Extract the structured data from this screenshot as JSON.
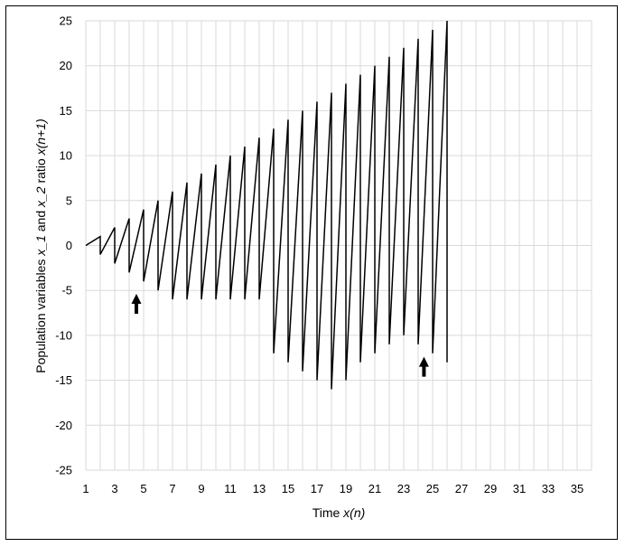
{
  "chart_data": {
    "type": "line",
    "xlabel_main": "Time ",
    "xlabel_var": "x(n)",
    "ylabel_main": "Population variables ",
    "ylabel_var1": "x_1",
    "ylabel_mid": " and ",
    "ylabel_var2": "x_2",
    "ylabel_end": " ratio ",
    "ylabel_var3": "x(n+1)",
    "xlim": [
      1,
      36
    ],
    "ylim": [
      -25,
      25
    ],
    "x_ticks": [
      "1",
      "3",
      "5",
      "7",
      "9",
      "11",
      "13",
      "15",
      "17",
      "19",
      "21",
      "23",
      "25",
      "27",
      "29",
      "31",
      "33",
      "35"
    ],
    "y_ticks": [
      "25",
      "20",
      "15",
      "10",
      "5",
      "0",
      "-5",
      "-10",
      "-15",
      "-20",
      "-25"
    ],
    "x_tick_values": [
      1,
      3,
      5,
      7,
      9,
      11,
      13,
      15,
      17,
      19,
      21,
      23,
      25,
      27,
      29,
      31,
      33,
      35
    ],
    "y_tick_values": [
      25,
      20,
      15,
      10,
      5,
      0,
      -5,
      -10,
      -15,
      -20,
      -25
    ],
    "grid": true,
    "line_color": "#000000",
    "grid_color": "#d9d9d9",
    "series": [
      {
        "points": [
          [
            1,
            0
          ],
          [
            2,
            1
          ],
          [
            2,
            -1
          ],
          [
            3,
            2
          ],
          [
            3,
            -2
          ],
          [
            4,
            3
          ],
          [
            4,
            -3
          ],
          [
            5,
            4
          ],
          [
            5,
            -4
          ],
          [
            6,
            5
          ],
          [
            6,
            -5
          ],
          [
            7,
            6
          ],
          [
            7,
            -6
          ],
          [
            8,
            7
          ],
          [
            8,
            -6
          ],
          [
            9,
            8
          ],
          [
            9,
            -6
          ],
          [
            10,
            9
          ],
          [
            10,
            -6
          ],
          [
            11,
            10
          ],
          [
            11,
            -6
          ],
          [
            12,
            11
          ],
          [
            12,
            -6
          ],
          [
            13,
            12
          ],
          [
            13,
            -6
          ],
          [
            14,
            13
          ],
          [
            14,
            -12
          ],
          [
            15,
            14
          ],
          [
            15,
            -13
          ],
          [
            16,
            15
          ],
          [
            16,
            -14
          ],
          [
            17,
            16
          ],
          [
            17,
            -15
          ],
          [
            18,
            17
          ],
          [
            18,
            -16
          ],
          [
            19,
            18
          ],
          [
            19,
            -15
          ],
          [
            20,
            19
          ],
          [
            20,
            -13
          ],
          [
            21,
            20
          ],
          [
            21,
            -12
          ],
          [
            22,
            21
          ],
          [
            22,
            -11
          ],
          [
            23,
            22
          ],
          [
            23,
            -10
          ],
          [
            24,
            23
          ],
          [
            24,
            -11
          ],
          [
            25,
            24
          ],
          [
            25,
            -12
          ],
          [
            26,
            25
          ],
          [
            26,
            -13
          ]
        ]
      }
    ],
    "annotations": [
      {
        "type": "up-arrow",
        "x": 4.5,
        "y": -7.6
      },
      {
        "type": "up-arrow",
        "x": 24.4,
        "y": -14.6
      }
    ]
  }
}
